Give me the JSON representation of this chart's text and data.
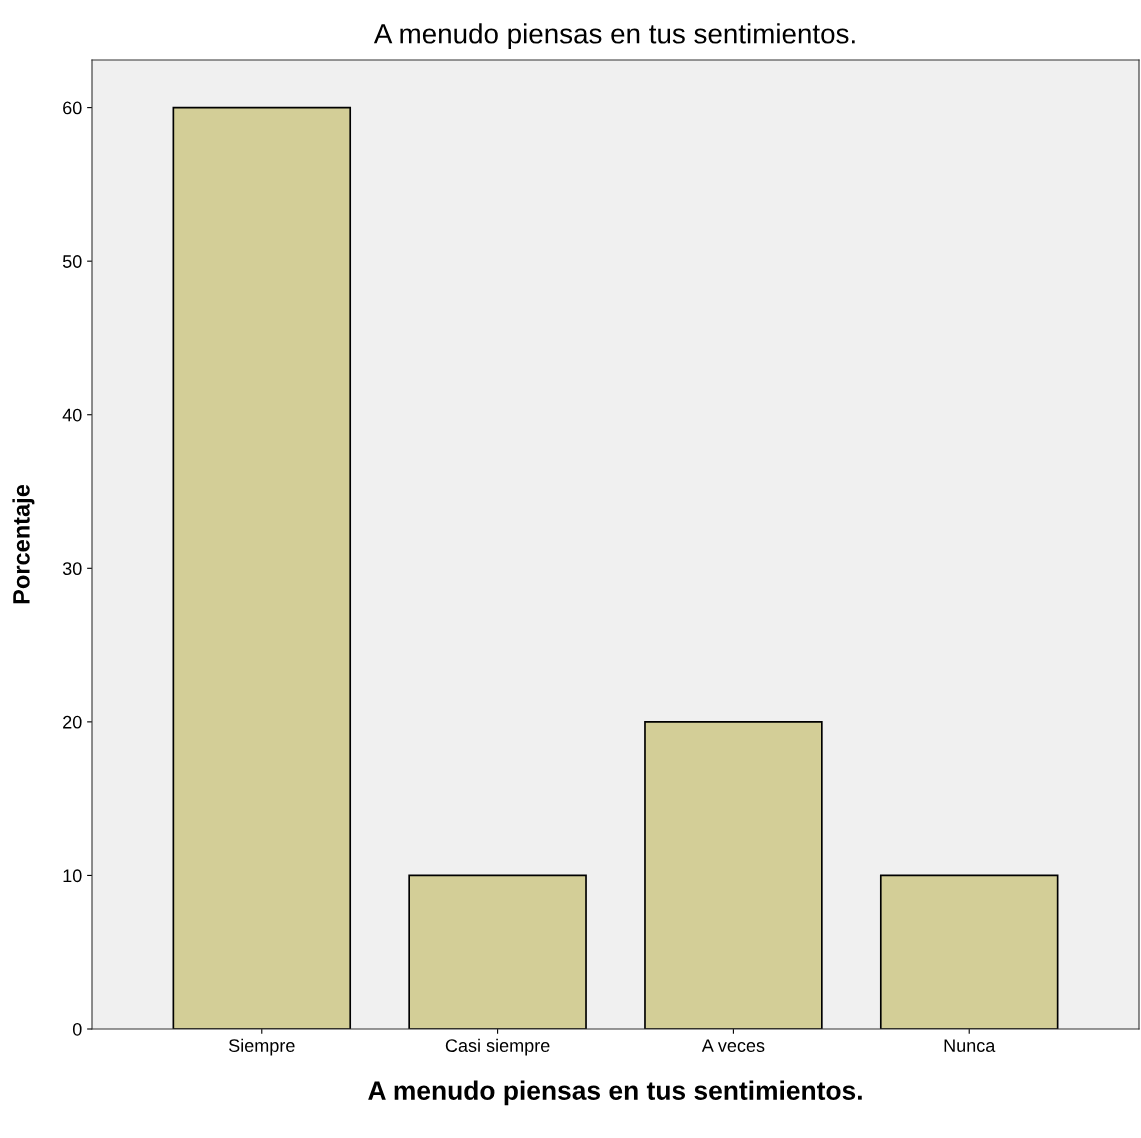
{
  "chart_data": {
    "type": "bar",
    "title": "A menudo piensas en tus sentimientos.",
    "xlabel": "A menudo piensas en tus sentimientos.",
    "ylabel": "Porcentaje",
    "categories": [
      "Siempre",
      "Casi siempre",
      "A veces",
      "Nunca"
    ],
    "values": [
      60,
      10,
      20,
      10
    ],
    "color": "#d3ce97",
    "ylim": [
      0,
      63.1
    ],
    "yticks": [
      0,
      10,
      20,
      30,
      40,
      50,
      60
    ],
    "grid": false,
    "legend": false
  }
}
